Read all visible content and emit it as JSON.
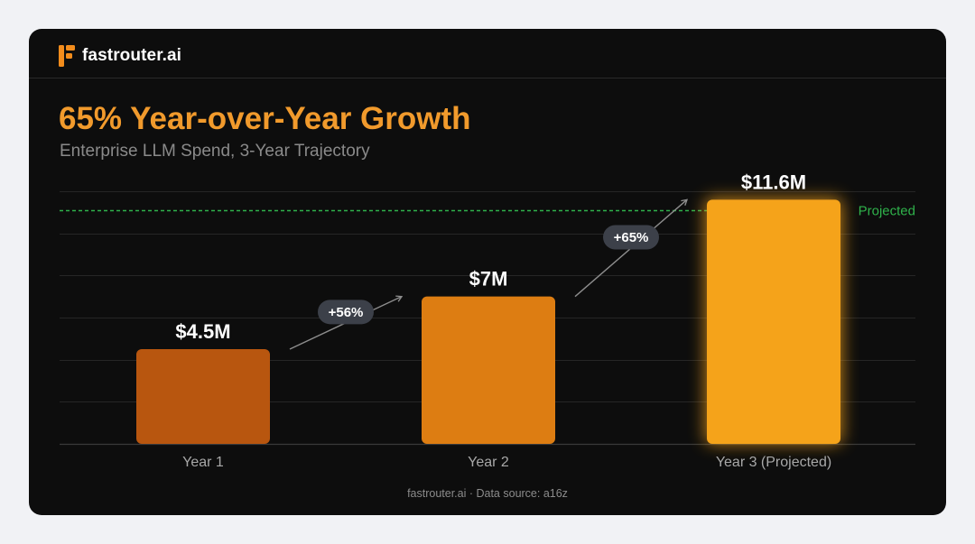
{
  "brand": {
    "name": "fastrouter.ai",
    "icon": "fastrouter-logo-icon",
    "color": "#f28c1c"
  },
  "footer": {
    "text": "fastrouter.ai · Data source: a16z"
  },
  "chart_data": {
    "type": "bar",
    "title": "65% Year-over-Year Growth",
    "subtitle": "Enterprise LLM Spend, 3-Year Trajectory",
    "categories": [
      "Year 1",
      "Year 2",
      "Year 3 (Projected)"
    ],
    "values": [
      4.5,
      7,
      11.6
    ],
    "value_labels": [
      "$4.5M",
      "$7M",
      "$11.6M"
    ],
    "unit": "$M",
    "ylim": [
      0,
      12
    ],
    "grid": true,
    "bar_colors": [
      "#b8560f",
      "#dd7d12",
      "#f5a31a"
    ],
    "reference_line": {
      "value": 11.1,
      "label": "Projected",
      "color": "#2fb24b",
      "style": "dashed"
    },
    "growth_annotations": [
      {
        "from": "Year 1",
        "to": "Year 2",
        "label": "+56%"
      },
      {
        "from": "Year 2",
        "to": "Year 3 (Projected)",
        "label": "+65%"
      }
    ],
    "highlight": {
      "category": "Year 3 (Projected)",
      "effect": "glow"
    }
  }
}
